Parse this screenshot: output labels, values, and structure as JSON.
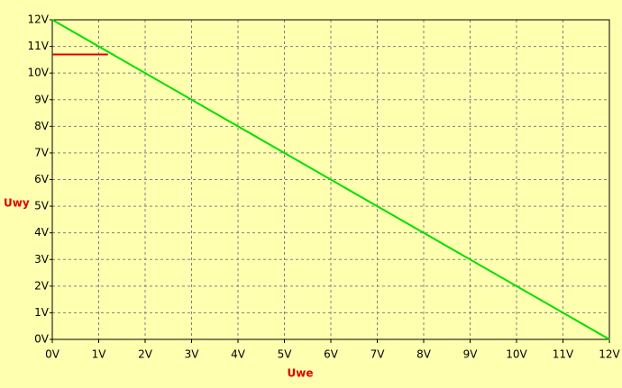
{
  "chart_data": {
    "type": "line",
    "x_label": "Uwe",
    "y_label": "Uwy",
    "xlim": [
      0,
      12
    ],
    "ylim": [
      0,
      12
    ],
    "xticks": [
      {
        "value": 0,
        "label": "0V"
      },
      {
        "value": 1,
        "label": "1V"
      },
      {
        "value": 2,
        "label": "2V"
      },
      {
        "value": 3,
        "label": "3V"
      },
      {
        "value": 4,
        "label": "4V"
      },
      {
        "value": 5,
        "label": "5V"
      },
      {
        "value": 6,
        "label": "6V"
      },
      {
        "value": 7,
        "label": "7V"
      },
      {
        "value": 8,
        "label": "8V"
      },
      {
        "value": 9,
        "label": "9V"
      },
      {
        "value": 10,
        "label": "10V"
      },
      {
        "value": 11,
        "label": "11V"
      },
      {
        "value": 12,
        "label": "12V"
      }
    ],
    "yticks": [
      {
        "value": 0,
        "label": "0V"
      },
      {
        "value": 1,
        "label": "1V"
      },
      {
        "value": 2,
        "label": "2V"
      },
      {
        "value": 3,
        "label": "3V"
      },
      {
        "value": 4,
        "label": "4V"
      },
      {
        "value": 5,
        "label": "5V"
      },
      {
        "value": 6,
        "label": "6V"
      },
      {
        "value": 7,
        "label": "7V"
      },
      {
        "value": 8,
        "label": "8V"
      },
      {
        "value": 9,
        "label": "9V"
      },
      {
        "value": 10,
        "label": "10V"
      },
      {
        "value": 11,
        "label": "11V"
      },
      {
        "value": 12,
        "label": "12V"
      }
    ],
    "grid": true,
    "series": [
      {
        "color": "#00e000",
        "x": [
          0,
          12
        ],
        "values": [
          12,
          0
        ]
      },
      {
        "color": "#e00000",
        "x": [
          0,
          1.2
        ],
        "values": [
          10.7,
          10.7
        ]
      }
    ]
  }
}
